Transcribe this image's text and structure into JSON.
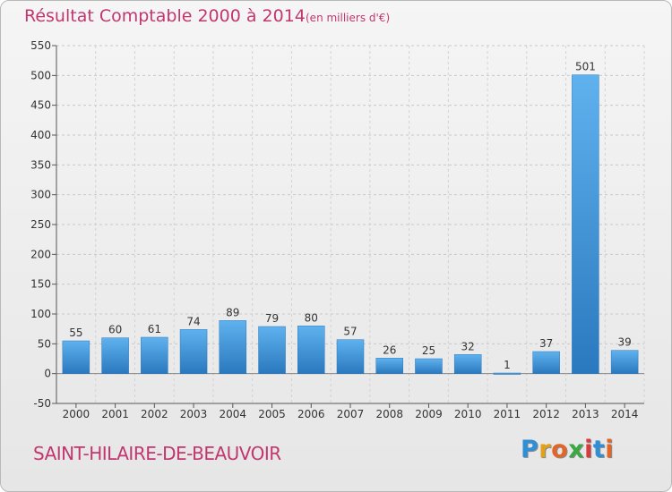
{
  "header": {
    "title": "Résultat Comptable 2000 à 2014",
    "subtitle": "(en milliers d'€)"
  },
  "footer": {
    "commune": "SAINT-HILAIRE-DE-BEAUVOIR",
    "logo_letters": [
      "P",
      "r",
      "o",
      "x",
      "i",
      "t",
      "i"
    ],
    "logo_colors": [
      "#2e8fd6",
      "#e0a21a",
      "#e0662a",
      "#3aa843",
      "#d93a3a",
      "#2e8fd6",
      "#e0662a"
    ]
  },
  "chart_data": {
    "type": "bar",
    "categories": [
      "2000",
      "2001",
      "2002",
      "2003",
      "2004",
      "2005",
      "2006",
      "2007",
      "2008",
      "2009",
      "2010",
      "2011",
      "2012",
      "2013",
      "2014"
    ],
    "values": [
      55,
      60,
      61,
      74,
      89,
      79,
      80,
      57,
      26,
      25,
      32,
      1,
      37,
      501,
      39
    ],
    "ylim": [
      -50,
      550
    ],
    "yticks": [
      -50,
      0,
      50,
      100,
      150,
      200,
      250,
      300,
      350,
      400,
      450,
      500,
      550
    ],
    "grid": true,
    "bar_color": "#3a92d6",
    "title": "Résultat Comptable 2000 à 2014",
    "xlabel": "",
    "ylabel": ""
  }
}
